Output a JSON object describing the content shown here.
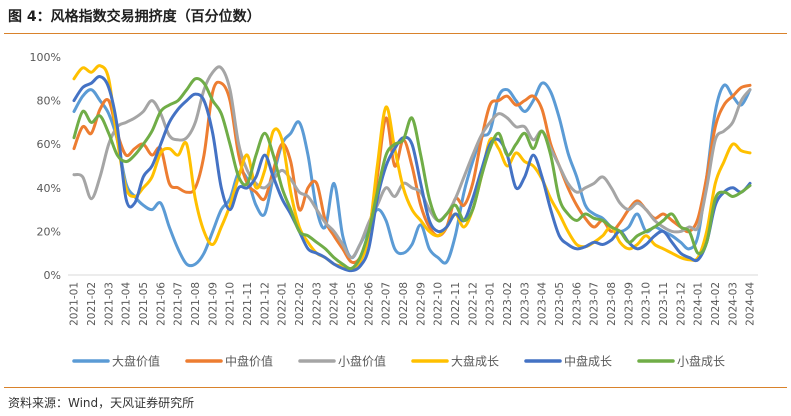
{
  "chart_data": {
    "type": "line",
    "title": "图 4：风格指数交易拥挤度（百分位数）",
    "xlabel": "",
    "ylabel": "",
    "ylim": [
      0,
      100
    ],
    "y_ticks": [
      0,
      20,
      40,
      60,
      80,
      100
    ],
    "y_tick_labels": [
      "0%",
      "20%",
      "40%",
      "60%",
      "80%",
      "100%"
    ],
    "grid": false,
    "legend": "bottom",
    "x_ticks": [
      "2021-01",
      "2021-02",
      "2021-03",
      "2021-04",
      "2021-05",
      "2021-06",
      "2021-07",
      "2021-08",
      "2021-09",
      "2021-10",
      "2021-11",
      "2021-12",
      "2022-01",
      "2022-02",
      "2022-03",
      "2022-04",
      "2022-05",
      "2022-06",
      "2022-07",
      "2022-08",
      "2022-09",
      "2022-10",
      "2022-11",
      "2022-12",
      "2023-01",
      "2023-02",
      "2023-03",
      "2023-04",
      "2023-05",
      "2023-06",
      "2023-07",
      "2023-08",
      "2023-09",
      "2023-10",
      "2023-11",
      "2023-12",
      "2024-01",
      "2024-02",
      "2024-03",
      "2024-04"
    ],
    "x": [
      "2021-01-01",
      "2021-01-16",
      "2021-02-01",
      "2021-02-16",
      "2021-03-01",
      "2021-03-16",
      "2021-04-01",
      "2021-04-16",
      "2021-05-01",
      "2021-05-16",
      "2021-06-01",
      "2021-06-16",
      "2021-07-01",
      "2021-07-16",
      "2021-08-01",
      "2021-08-16",
      "2021-09-01",
      "2021-09-16",
      "2021-10-01",
      "2021-10-16",
      "2021-11-01",
      "2021-11-16",
      "2021-12-01",
      "2021-12-16",
      "2022-01-01",
      "2022-01-16",
      "2022-02-01",
      "2022-02-16",
      "2022-03-01",
      "2022-03-16",
      "2022-04-01",
      "2022-04-16",
      "2022-05-01",
      "2022-05-16",
      "2022-06-01",
      "2022-06-16",
      "2022-07-01",
      "2022-07-16",
      "2022-08-01",
      "2022-08-16",
      "2022-09-01",
      "2022-09-16",
      "2022-10-01",
      "2022-10-16",
      "2022-11-01",
      "2022-11-16",
      "2022-12-01",
      "2022-12-16",
      "2023-01-01",
      "2023-01-16",
      "2023-02-01",
      "2023-02-16",
      "2023-03-01",
      "2023-03-16",
      "2023-04-01",
      "2023-04-16",
      "2023-05-01",
      "2023-05-16",
      "2023-06-01",
      "2023-06-16",
      "2023-07-01",
      "2023-07-16",
      "2023-08-01",
      "2023-08-16",
      "2023-09-01",
      "2023-09-16",
      "2023-10-01",
      "2023-10-16",
      "2023-11-01",
      "2023-11-16",
      "2023-12-01",
      "2023-12-16",
      "2024-01-01",
      "2024-01-16",
      "2024-02-01",
      "2024-02-16",
      "2024-03-01",
      "2024-03-16",
      "2024-04-01"
    ],
    "series": [
      {
        "name": "大盘价值",
        "color": "#5B9BD5",
        "values": [
          75,
          82,
          85,
          80,
          74,
          62,
          42,
          36,
          32,
          30,
          33,
          22,
          12,
          5,
          5,
          10,
          20,
          30,
          35,
          47,
          44,
          32,
          28,
          45,
          60,
          65,
          70,
          55,
          30,
          22,
          42,
          18,
          8,
          14,
          22,
          30,
          25,
          12,
          10,
          14,
          23,
          12,
          8,
          6,
          18,
          38,
          52,
          63,
          66,
          82,
          85,
          80,
          75,
          80,
          88,
          84,
          72,
          56,
          45,
          32,
          28,
          26,
          22,
          20,
          22,
          28,
          20,
          22,
          20,
          18,
          15,
          12,
          18,
          45,
          75,
          87,
          82,
          78,
          85
        ]
      },
      {
        "name": "中盘价值",
        "color": "#ED7D31",
        "values": [
          58,
          68,
          65,
          76,
          80,
          65,
          55,
          58,
          60,
          55,
          58,
          42,
          40,
          38,
          40,
          55,
          84,
          88,
          80,
          55,
          42,
          38,
          35,
          48,
          60,
          52,
          30,
          40,
          42,
          25,
          18,
          12,
          6,
          8,
          20,
          45,
          72,
          50,
          62,
          50,
          32,
          22,
          18,
          22,
          35,
          32,
          42,
          62,
          78,
          80,
          82,
          78,
          80,
          82,
          76,
          60,
          50,
          40,
          32,
          26,
          22,
          25,
          20,
          24,
          30,
          34,
          30,
          26,
          28,
          25,
          22,
          20,
          26,
          45,
          68,
          78,
          82,
          86,
          87
        ]
      },
      {
        "name": "小盘价值",
        "color": "#A5A5A5",
        "values": [
          46,
          45,
          35,
          45,
          60,
          68,
          70,
          72,
          75,
          80,
          74,
          64,
          62,
          63,
          70,
          85,
          93,
          95,
          85,
          60,
          48,
          42,
          40,
          44,
          48,
          44,
          38,
          36,
          30,
          24,
          20,
          14,
          8,
          14,
          24,
          32,
          40,
          36,
          42,
          40,
          38,
          30,
          25,
          28,
          35,
          45,
          55,
          64,
          70,
          74,
          72,
          68,
          68,
          62,
          66,
          58,
          50,
          42,
          38,
          40,
          42,
          45,
          40,
          33,
          30,
          33,
          30,
          25,
          22,
          20,
          20,
          22,
          22,
          40,
          62,
          66,
          70,
          80,
          85
        ]
      },
      {
        "name": "大盘成长",
        "color": "#FFC000",
        "values": [
          90,
          95,
          93,
          96,
          90,
          62,
          40,
          36,
          40,
          45,
          56,
          58,
          55,
          60,
          35,
          20,
          14,
          22,
          32,
          45,
          55,
          40,
          48,
          66,
          62,
          38,
          22,
          15,
          10,
          8,
          5,
          4,
          3,
          6,
          18,
          50,
          77,
          58,
          40,
          30,
          25,
          20,
          18,
          22,
          28,
          22,
          30,
          45,
          62,
          58,
          50,
          56,
          52,
          50,
          44,
          35,
          28,
          20,
          14,
          13,
          15,
          18,
          22,
          15,
          12,
          14,
          18,
          14,
          12,
          10,
          8,
          7,
          8,
          20,
          42,
          52,
          60,
          57,
          56
        ]
      },
      {
        "name": "中盘成长",
        "color": "#4472C4",
        "values": [
          80,
          86,
          88,
          91,
          86,
          68,
          35,
          33,
          45,
          50,
          60,
          70,
          76,
          80,
          83,
          80,
          65,
          40,
          30,
          40,
          40,
          45,
          55,
          45,
          35,
          28,
          20,
          12,
          10,
          8,
          5,
          3,
          2,
          4,
          12,
          35,
          50,
          58,
          63,
          60,
          42,
          25,
          20,
          22,
          28,
          25,
          35,
          48,
          60,
          62,
          55,
          40,
          45,
          55,
          45,
          30,
          18,
          14,
          12,
          13,
          15,
          14,
          16,
          20,
          15,
          12,
          14,
          18,
          20,
          15,
          10,
          8,
          7,
          15,
          32,
          38,
          40,
          38,
          42
        ]
      },
      {
        "name": "小盘成长",
        "color": "#70AD47",
        "values": [
          63,
          75,
          70,
          73,
          65,
          55,
          52,
          55,
          60,
          66,
          75,
          78,
          80,
          85,
          90,
          88,
          80,
          74,
          60,
          45,
          42,
          55,
          65,
          55,
          40,
          30,
          20,
          18,
          15,
          12,
          8,
          5,
          3,
          8,
          20,
          38,
          55,
          60,
          62,
          72,
          55,
          35,
          25,
          28,
          32,
          25,
          30,
          45,
          58,
          65,
          55,
          60,
          65,
          58,
          66,
          55,
          35,
          28,
          25,
          28,
          26,
          25,
          22,
          20,
          15,
          18,
          20,
          22,
          25,
          28,
          22,
          20,
          10,
          15,
          35,
          38,
          36,
          38,
          41
        ]
      }
    ]
  },
  "source": "资料来源：Wind，天风证券研究所"
}
